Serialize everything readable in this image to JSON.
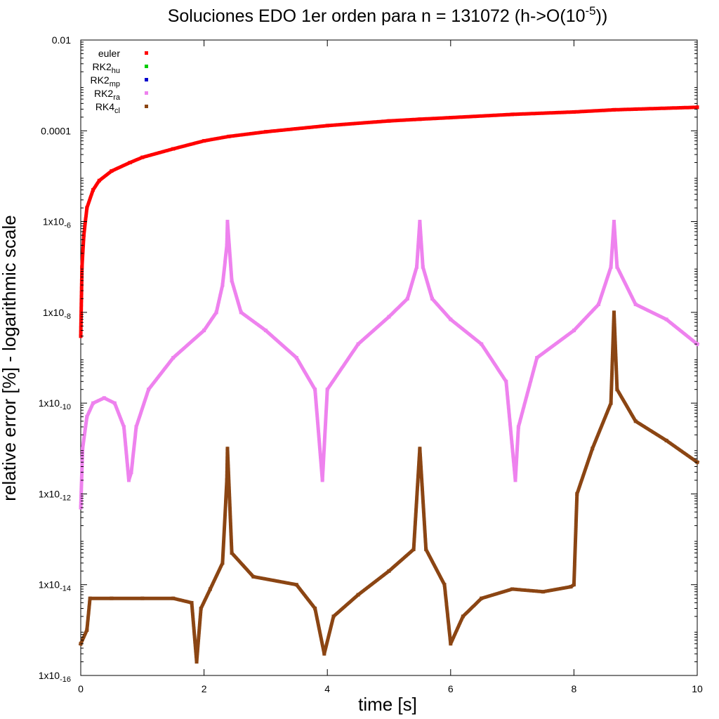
{
  "chart_data": {
    "type": "scatter",
    "title": "Soluciones EDO 1er orden para n = 131072 (h->O(10",
    "title_superscript": "-5",
    "title_suffix": "))",
    "xlabel": "time [s]",
    "ylabel": "relative error [%] - logarithmic scale",
    "xlim": [
      0,
      10
    ],
    "ylim": [
      1e-16,
      0.01
    ],
    "yscale": "log",
    "grid": false,
    "legend_position": "top-left",
    "x_ticks": [
      {
        "value": 0,
        "label": "0"
      },
      {
        "value": 2,
        "label": "2"
      },
      {
        "value": 4,
        "label": "4"
      },
      {
        "value": 6,
        "label": "6"
      },
      {
        "value": 8,
        "label": "8"
      },
      {
        "value": 10,
        "label": "10"
      }
    ],
    "y_ticks": [
      {
        "value": 0.01,
        "base": "0.01",
        "exp": ""
      },
      {
        "value": 0.0001,
        "base": "0.0001",
        "exp": ""
      },
      {
        "value": 1e-06,
        "base": "1x10",
        "exp": "-6"
      },
      {
        "value": 1e-08,
        "base": "1x10",
        "exp": "-8"
      },
      {
        "value": 1e-10,
        "base": "1x10",
        "exp": "-10"
      },
      {
        "value": 1e-12,
        "base": "1x10",
        "exp": "-12"
      },
      {
        "value": 1e-14,
        "base": "1x10",
        "exp": "-14"
      },
      {
        "value": 1e-16,
        "base": "1x10",
        "exp": "-16"
      }
    ],
    "series": [
      {
        "name": "euler",
        "name_sub": "",
        "color": "#ff0000",
        "points": [
          [
            0.0,
            3e-09
          ],
          [
            0.02,
            1e-07
          ],
          [
            0.05,
            5e-07
          ],
          [
            0.1,
            2e-06
          ],
          [
            0.2,
            5e-06
          ],
          [
            0.3,
            8e-06
          ],
          [
            0.5,
            1.3e-05
          ],
          [
            0.8,
            2e-05
          ],
          [
            1.0,
            2.6e-05
          ],
          [
            1.5,
            4e-05
          ],
          [
            2.0,
            6e-05
          ],
          [
            2.4,
            7.5e-05
          ],
          [
            3.0,
            9.5e-05
          ],
          [
            4.0,
            0.00013
          ],
          [
            5.0,
            0.000165
          ],
          [
            5.5,
            0.00018
          ],
          [
            6.0,
            0.000195
          ],
          [
            7.0,
            0.00023
          ],
          [
            8.0,
            0.00026
          ],
          [
            8.65,
            0.00029
          ],
          [
            9.0,
            0.0003
          ],
          [
            10.0,
            0.00033
          ]
        ]
      },
      {
        "name": "RK2",
        "name_sub": "hu",
        "color": "#00cc00",
        "points": []
      },
      {
        "name": "RK2",
        "name_sub": "mp",
        "color": "#0000cc",
        "points": []
      },
      {
        "name": "RK2",
        "name_sub": "ra",
        "color": "#ee82ee",
        "points": [
          [
            0.0,
            5e-13
          ],
          [
            0.03,
            1e-11
          ],
          [
            0.1,
            5e-11
          ],
          [
            0.2,
            1e-10
          ],
          [
            0.38,
            1.3e-10
          ],
          [
            0.55,
            1e-10
          ],
          [
            0.7,
            3e-11
          ],
          [
            0.78,
            2e-12
          ],
          [
            0.82,
            3e-12
          ],
          [
            0.9,
            3e-11
          ],
          [
            1.1,
            2e-10
          ],
          [
            1.5,
            1e-09
          ],
          [
            2.0,
            4e-09
          ],
          [
            2.2,
            1e-08
          ],
          [
            2.3,
            4e-08
          ],
          [
            2.37,
            3e-07
          ],
          [
            2.38,
            1e-06
          ],
          [
            2.45,
            5e-08
          ],
          [
            2.6,
            1e-08
          ],
          [
            3.0,
            4e-09
          ],
          [
            3.5,
            1e-09
          ],
          [
            3.8,
            2e-10
          ],
          [
            3.92,
            2e-12
          ],
          [
            4.0,
            2e-10
          ],
          [
            4.5,
            2e-09
          ],
          [
            5.0,
            8e-09
          ],
          [
            5.3,
            2e-08
          ],
          [
            5.45,
            1e-07
          ],
          [
            5.5,
            1e-06
          ],
          [
            5.55,
            1e-07
          ],
          [
            5.7,
            2e-08
          ],
          [
            6.0,
            7e-09
          ],
          [
            6.5,
            2e-09
          ],
          [
            6.9,
            3e-10
          ],
          [
            7.05,
            2e-12
          ],
          [
            7.1,
            3e-11
          ],
          [
            7.4,
            1e-09
          ],
          [
            8.0,
            4e-09
          ],
          [
            8.4,
            1.5e-08
          ],
          [
            8.6,
            1e-07
          ],
          [
            8.65,
            1e-06
          ],
          [
            8.7,
            1e-07
          ],
          [
            9.0,
            1.5e-08
          ],
          [
            9.5,
            7e-09
          ],
          [
            10.0,
            2e-09
          ]
        ]
      },
      {
        "name": "RK4",
        "name_sub": "cl",
        "color": "#8b4513",
        "points": [
          [
            0.0,
            5e-16
          ],
          [
            0.1,
            1e-15
          ],
          [
            0.15,
            5e-15
          ],
          [
            0.5,
            5e-15
          ],
          [
            1.0,
            5e-15
          ],
          [
            1.5,
            5e-15
          ],
          [
            1.8,
            4e-15
          ],
          [
            1.88,
            2e-16
          ],
          [
            1.95,
            3e-15
          ],
          [
            2.1,
            8e-15
          ],
          [
            2.3,
            3e-14
          ],
          [
            2.37,
            2e-12
          ],
          [
            2.38,
            1e-11
          ],
          [
            2.45,
            5e-14
          ],
          [
            2.8,
            1.5e-14
          ],
          [
            3.5,
            1e-14
          ],
          [
            3.8,
            3e-15
          ],
          [
            3.95,
            3e-16
          ],
          [
            4.1,
            2e-15
          ],
          [
            4.5,
            6e-15
          ],
          [
            5.0,
            2e-14
          ],
          [
            5.4,
            6e-14
          ],
          [
            5.5,
            1e-11
          ],
          [
            5.6,
            6e-14
          ],
          [
            5.9,
            1e-14
          ],
          [
            6.0,
            5e-16
          ],
          [
            6.2,
            2e-15
          ],
          [
            6.5,
            5e-15
          ],
          [
            7.0,
            8e-15
          ],
          [
            7.5,
            7e-15
          ],
          [
            7.95,
            9e-15
          ],
          [
            8.0,
            1e-14
          ],
          [
            8.05,
            1e-12
          ],
          [
            8.3,
            1e-11
          ],
          [
            8.6,
            1e-10
          ],
          [
            8.65,
            1e-08
          ],
          [
            8.7,
            2e-10
          ],
          [
            9.0,
            4e-11
          ],
          [
            9.5,
            1.5e-11
          ],
          [
            10.0,
            5e-12
          ]
        ]
      }
    ]
  }
}
